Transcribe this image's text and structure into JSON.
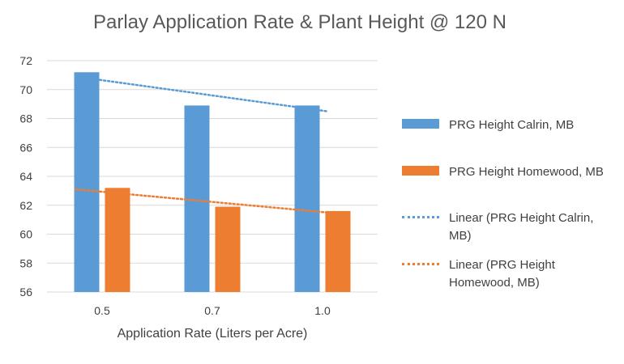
{
  "chart_data": {
    "type": "bar",
    "title": "Parlay Application Rate & Plant Height @ 120 N",
    "xlabel": "Application Rate (Liters per Acre)",
    "ylabel": "",
    "categories": [
      "0.5",
      "0.7",
      "1.0"
    ],
    "ylim": [
      56,
      72
    ],
    "yticks": [
      "56",
      "58",
      "60",
      "62",
      "64",
      "66",
      "68",
      "70",
      "72"
    ],
    "grid": true,
    "legend_position": "right",
    "series": [
      {
        "name": "PRG Height Calrin, MB",
        "values": [
          71.2,
          68.9,
          68.9
        ],
        "color": "#5b9bd5"
      },
      {
        "name": "PRG Height Homewood, MB",
        "values": [
          63.2,
          61.9,
          61.6
        ],
        "color": "#ed7d31"
      }
    ],
    "trendlines": [
      {
        "name": "Linear (PRG Height Calrin, MB)",
        "type": "linear",
        "values": [
          70.9,
          69.7,
          68.5
        ],
        "color": "#5b9bd5"
      },
      {
        "name": "Linear (PRG Height Homewood, MB)",
        "type": "linear",
        "values": [
          63.1,
          62.3,
          61.5
        ],
        "color": "#ed7d31"
      }
    ]
  }
}
